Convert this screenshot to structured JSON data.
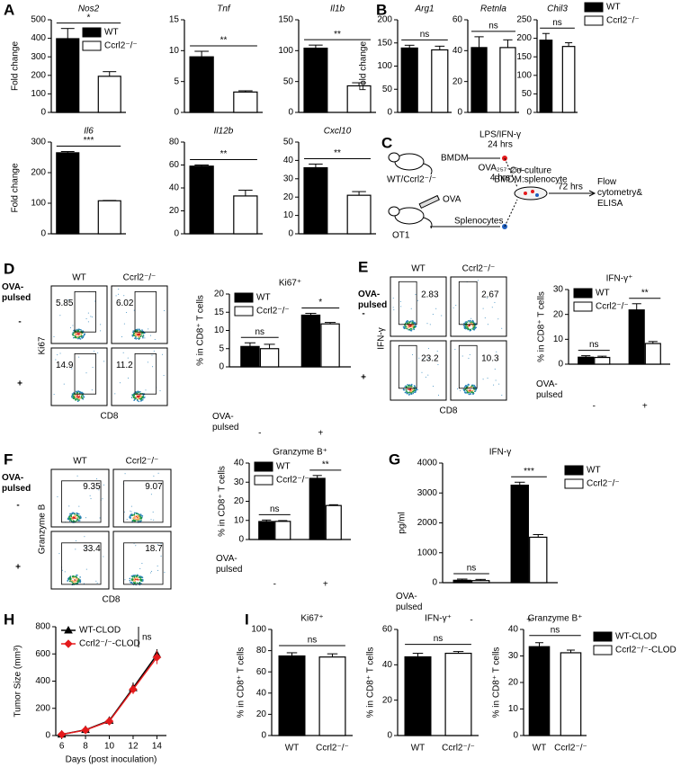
{
  "panel_labels": [
    "A",
    "B",
    "C",
    "D",
    "E",
    "F",
    "G",
    "H",
    "I"
  ],
  "chart_data": [
    {
      "type": "bar",
      "title": "Nos2",
      "ylabel": "Fold change",
      "categories": [
        null
      ],
      "series": [
        {
          "name": "WT",
          "color": "#000000",
          "values": [
            398
          ],
          "errors": [
            55
          ]
        },
        {
          "name": "Ccrl2⁻/⁻",
          "color": "#ffffff",
          "values": [
            195
          ],
          "errors": [
            25
          ]
        }
      ],
      "significance": [
        "*"
      ],
      "ylim": [
        0,
        500
      ],
      "yticks": [
        0,
        100,
        200,
        300,
        400,
        500
      ],
      "legend": "upper right"
    },
    {
      "type": "bar",
      "title": "Tnf",
      "categories": [
        null
      ],
      "series": [
        {
          "color": "#000000",
          "values": [
            9
          ],
          "errors": [
            0.9
          ]
        },
        {
          "color": "#ffffff",
          "values": [
            3.3
          ],
          "errors": [
            0.2
          ]
        }
      ],
      "significance": [
        "**"
      ],
      "ylim": [
        0,
        15
      ],
      "yticks": [
        0,
        5,
        10,
        15
      ]
    },
    {
      "type": "bar",
      "title": "Il1b",
      "categories": [
        null
      ],
      "series": [
        {
          "color": "#000000",
          "values": [
            104
          ],
          "errors": [
            5
          ]
        },
        {
          "color": "#ffffff",
          "values": [
            43
          ],
          "errors": [
            5
          ]
        }
      ],
      "significance": [
        "**"
      ],
      "ylim": [
        0,
        150
      ],
      "yticks": [
        0,
        50,
        100,
        150
      ]
    },
    {
      "type": "bar",
      "title": "Il6",
      "ylabel": "Fold change",
      "categories": [
        null
      ],
      "series": [
        {
          "color": "#000000",
          "values": [
            265
          ],
          "errors": [
            4
          ]
        },
        {
          "color": "#ffffff",
          "values": [
            108
          ],
          "errors": [
            1
          ]
        }
      ],
      "significance": [
        "***"
      ],
      "ylim": [
        0,
        300
      ],
      "yticks": [
        0,
        100,
        200,
        300
      ]
    },
    {
      "type": "bar",
      "title": "Il12b",
      "categories": [
        null
      ],
      "series": [
        {
          "color": "#000000",
          "values": [
            59
          ],
          "errors": [
            1
          ]
        },
        {
          "color": "#ffffff",
          "values": [
            33
          ],
          "errors": [
            5
          ]
        }
      ],
      "significance": [
        "**"
      ],
      "ylim": [
        0,
        80
      ],
      "yticks": [
        0,
        20,
        40,
        60,
        80
      ]
    },
    {
      "type": "bar",
      "title": "Cxcl10",
      "categories": [
        null
      ],
      "series": [
        {
          "color": "#000000",
          "values": [
            36
          ],
          "errors": [
            2
          ]
        },
        {
          "color": "#ffffff",
          "values": [
            21
          ],
          "errors": [
            2
          ]
        }
      ],
      "significance": [
        "**"
      ],
      "ylim": [
        0,
        50
      ],
      "yticks": [
        0,
        10,
        20,
        30,
        40,
        50
      ]
    },
    {
      "type": "bar",
      "title": "Arg1",
      "ylabel": "Fold change",
      "categories": [
        null
      ],
      "series": [
        {
          "color": "#000000",
          "values": [
            139
          ],
          "errors": [
            6
          ]
        },
        {
          "color": "#ffffff",
          "values": [
            135
          ],
          "errors": [
            8
          ]
        }
      ],
      "significance": [
        "ns"
      ],
      "ylim": [
        0,
        200
      ],
      "yticks": [
        0,
        50,
        100,
        150,
        200
      ]
    },
    {
      "type": "bar",
      "title": "Retnla",
      "categories": [
        null
      ],
      "series": [
        {
          "color": "#000000",
          "values": [
            42
          ],
          "errors": [
            7
          ]
        },
        {
          "color": "#ffffff",
          "values": [
            42
          ],
          "errors": [
            5
          ]
        }
      ],
      "significance": [
        "ns"
      ],
      "ylim": [
        0,
        60
      ],
      "yticks": [
        0,
        20,
        40,
        60
      ]
    },
    {
      "type": "bar",
      "title": "Chil3",
      "categories": [
        null
      ],
      "series": [
        {
          "name": "WT",
          "color": "#000000",
          "values": [
            195
          ],
          "errors": [
            18
          ]
        },
        {
          "name": "Ccrl2⁻/⁻",
          "color": "#ffffff",
          "values": [
            178
          ],
          "errors": [
            10
          ]
        }
      ],
      "significance": [
        "ns"
      ],
      "ylim": [
        0,
        250
      ],
      "yticks": [
        0,
        50,
        100,
        150,
        200,
        250
      ],
      "legend": "top right"
    },
    {
      "type": "bar",
      "title": "Ki67⁺",
      "ylabel": "% in CD8⁺ T cells",
      "xlabel": "OVA-pulsed",
      "categories": [
        "-",
        "+"
      ],
      "series": [
        {
          "name": "WT",
          "color": "#000000",
          "values": [
            5.6,
            14.2
          ],
          "errors": [
            1,
            0.5
          ]
        },
        {
          "name": "Ccrl2⁻/⁻",
          "color": "#ffffff",
          "values": [
            5,
            11.8
          ],
          "errors": [
            1.2,
            0.4
          ]
        }
      ],
      "significance": [
        "ns",
        "*"
      ],
      "ylim": [
        0,
        20
      ],
      "yticks": [
        0,
        5,
        10,
        15,
        20
      ],
      "legend": "upper left"
    },
    {
      "type": "bar",
      "title": "IFN-γ⁺",
      "ylabel": "% in CD8⁺ T cells",
      "xlabel": "OVA-pulsed",
      "categories": [
        "-",
        "+"
      ],
      "series": [
        {
          "name": "WT",
          "color": "#000000",
          "values": [
            2.8,
            21.8
          ],
          "errors": [
            0.6,
            2.5
          ]
        },
        {
          "name": "Ccrl2⁻/⁻",
          "color": "#ffffff",
          "values": [
            2.7,
            8.3
          ],
          "errors": [
            0.5,
            0.8
          ]
        }
      ],
      "significance": [
        "ns",
        "**"
      ],
      "ylim": [
        0,
        30
      ],
      "yticks": [
        0,
        10,
        20,
        30
      ],
      "legend": "upper left"
    },
    {
      "type": "bar",
      "title": "Granzyme B⁺",
      "ylabel": "% in CD8⁺ T cells",
      "xlabel": "OVA-pulsed",
      "categories": [
        "-",
        "+"
      ],
      "series": [
        {
          "name": "WT",
          "color": "#000000",
          "values": [
            9.4,
            32
          ],
          "errors": [
            0.8,
            1.5
          ]
        },
        {
          "name": "Ccrl2⁻/⁻",
          "color": "#ffffff",
          "values": [
            9.5,
            17.8
          ],
          "errors": [
            0.4,
            0.4
          ]
        }
      ],
      "significance": [
        "ns",
        "**"
      ],
      "ylim": [
        0,
        40
      ],
      "yticks": [
        0,
        10,
        20,
        30,
        40
      ],
      "legend": "upper left"
    },
    {
      "type": "bar",
      "title": "IFN-γ",
      "ylabel": "pg/ml",
      "xlabel": "OVA-pulsed",
      "categories": [
        "-",
        "+"
      ],
      "series": [
        {
          "name": "WT",
          "color": "#000000",
          "values": [
            80,
            3260
          ],
          "errors": [
            40,
            100
          ]
        },
        {
          "name": "Ccrl2⁻/⁻",
          "color": "#ffffff",
          "values": [
            70,
            1520
          ],
          "errors": [
            40,
            90
          ]
        }
      ],
      "significance": [
        "ns",
        "***"
      ],
      "ylim": [
        0,
        4000
      ],
      "yticks": [
        0,
        1000,
        2000,
        3000,
        4000
      ],
      "legend": "right"
    },
    {
      "type": "line",
      "ylabel": "Tumor Size (mm³)",
      "xlabel": "Days (post inoculation)",
      "x": [
        6,
        8,
        10,
        12,
        14
      ],
      "xlim": [
        5.5,
        14.8
      ],
      "xticks": [
        6,
        8,
        10,
        12,
        14
      ],
      "ylim": [
        0,
        800
      ],
      "yticks": [
        0,
        200,
        400,
        600,
        800
      ],
      "series": [
        {
          "name": "WT-CLOD",
          "color": "#000000",
          "marker": "triangle",
          "values": [
            8,
            42,
            110,
            350,
            595
          ],
          "errors": [
            3,
            8,
            15,
            40,
            40
          ]
        },
        {
          "name": "Ccrl2⁻/⁻-CLOD",
          "color": "#e41a1c",
          "marker": "diamond",
          "values": [
            8,
            40,
            105,
            340,
            575
          ],
          "errors": [
            3,
            8,
            15,
            35,
            50
          ]
        }
      ],
      "legend": "upper left",
      "annotation": "ns"
    },
    {
      "type": "bar",
      "title": "Ki67⁺",
      "ylabel": "% in CD8⁺ T cells",
      "categories": [
        "WT",
        "Ccrl2⁻/⁻"
      ],
      "values": [
        75,
        74
      ],
      "errors": [
        3,
        3
      ],
      "colors": [
        "#000000",
        "#ffffff"
      ],
      "significance": "ns",
      "ylim": [
        0,
        100
      ],
      "yticks": [
        0,
        20,
        40,
        60,
        80,
        100
      ]
    },
    {
      "type": "bar",
      "title": "IFN-γ⁺",
      "ylabel": "% in CD8⁺ T cells",
      "categories": [
        "WT",
        "Ccrl2⁻/⁻"
      ],
      "values": [
        44.5,
        46.5
      ],
      "errors": [
        2,
        1
      ],
      "colors": [
        "#000000",
        "#ffffff"
      ],
      "significance": "ns",
      "ylim": [
        0,
        60
      ],
      "yticks": [
        0,
        20,
        40,
        60
      ]
    },
    {
      "type": "bar",
      "title": "Granzyme B⁺",
      "ylabel": "% in CD8⁺ T cells",
      "categories": [
        "WT",
        "Ccrl2⁻/⁻"
      ],
      "values": [
        33.5,
        31.2
      ],
      "errors": [
        1.5,
        1
      ],
      "colors": [
        "#000000",
        "#ffffff"
      ],
      "significance": "ns",
      "ylim": [
        0,
        40
      ],
      "yticks": [
        0,
        10,
        20,
        30,
        40
      ],
      "legend": "right",
      "legend_entries": [
        "WT-CLOD",
        "Ccrl2⁻/⁻-CLOD"
      ]
    }
  ],
  "flow_plots": [
    {
      "columns": [
        "WT",
        "Ccrl2⁻/⁻"
      ],
      "row_label": "OVA-pulsed",
      "rows": [
        "-",
        "+"
      ],
      "ylabel": "Ki67",
      "xlabel": "CD8",
      "gates": [
        [
          5.85,
          6.02
        ],
        [
          14.9,
          11.2
        ]
      ]
    },
    {
      "columns": [
        "WT",
        "Ccrl2⁻/⁻"
      ],
      "row_label": "OVA-pulsed",
      "rows": [
        "-",
        "+"
      ],
      "ylabel": "IFN-γ",
      "xlabel": "CD8",
      "gates": [
        [
          2.83,
          2.67
        ],
        [
          23.2,
          10.3
        ]
      ]
    },
    {
      "columns": [
        "WT",
        "Ccrl2⁻/⁻"
      ],
      "row_label": "OVA-pulsed",
      "rows": [
        "-",
        "+"
      ],
      "ylabel": "Granzyme B",
      "xlabel": "CD8",
      "gates": [
        [
          9.35,
          9.07
        ],
        [
          33.4,
          18.7
        ]
      ]
    }
  ],
  "diagram": {
    "strain": "WT/Ccrl2⁻/⁻",
    "bmdm": "BMDM",
    "stim": "LPS/IFN-γ",
    "stim_time": "24 hrs",
    "peptide": "OVA₂₅₇₋₂₆₄",
    "peptide_time": "4 hrs",
    "antigen": "OVA",
    "mouse": "OT1",
    "splenocytes": "Splenocytes",
    "coculture": "Co-culture",
    "ratio": "BMDM:splenocyte",
    "coculture_time": "72 hrs",
    "readout": "Flow cytometry& ELISA"
  }
}
